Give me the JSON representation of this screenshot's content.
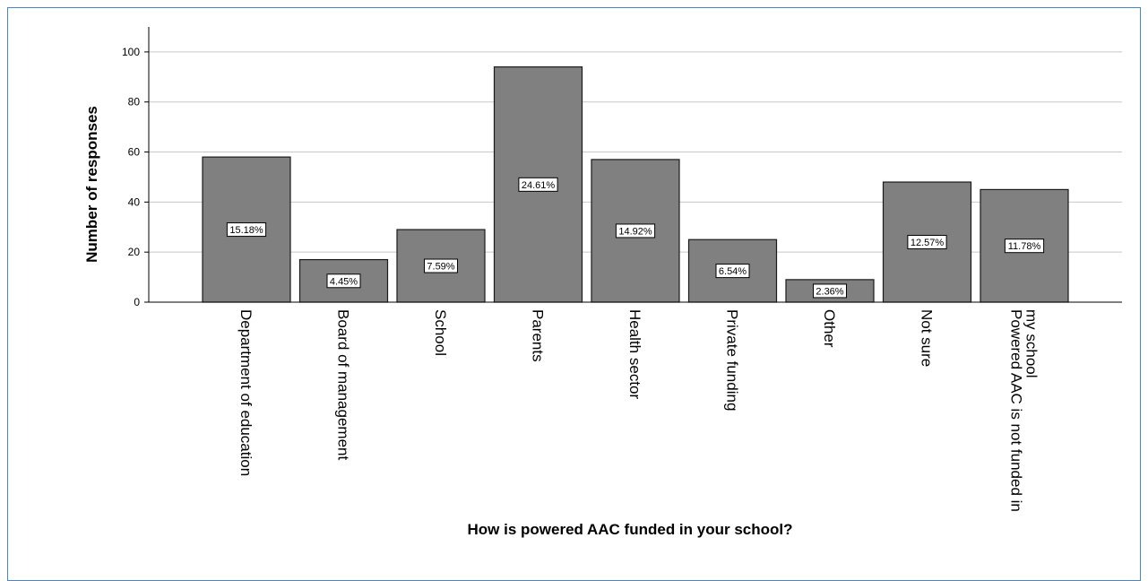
{
  "chart_data": {
    "type": "bar",
    "xlabel": "How is powered AAC funded in your school?",
    "ylabel": "Number of responses",
    "ylim": [
      0,
      110
    ],
    "yticks": [
      0,
      20,
      40,
      60,
      80,
      100
    ],
    "grid": true,
    "bar_color": "#808080",
    "categories": [
      [
        "Department of education"
      ],
      [
        "Board of management"
      ],
      [
        "School"
      ],
      [
        "Parents"
      ],
      [
        "Health sector"
      ],
      [
        "Private funding"
      ],
      [
        "Other"
      ],
      [
        "Not sure"
      ],
      [
        "Powered AAC is not funded in",
        "my school"
      ]
    ],
    "values": [
      58,
      17,
      29,
      94,
      57,
      25,
      9,
      48,
      45
    ],
    "data_labels": [
      "15.18%",
      "4.45%",
      "7.59%",
      "24.61%",
      "14.92%",
      "6.54%",
      "2.36%",
      "12.57%",
      "11.78%"
    ]
  }
}
